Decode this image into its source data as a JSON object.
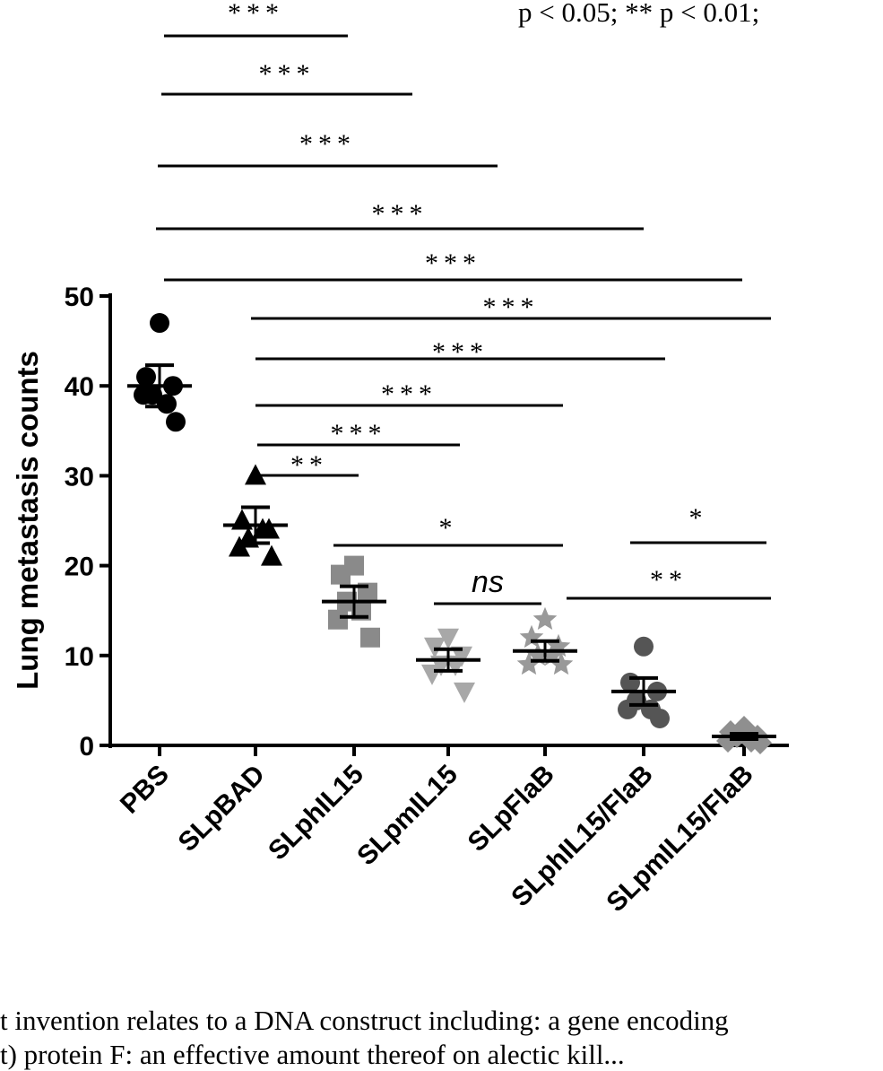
{
  "header_fragment": "p < 0.05;  ** p < 0.01;",
  "chart_data": {
    "type": "scatter",
    "title": "",
    "xlabel": "",
    "ylabel": "Lung metastasis counts",
    "ylim": [
      0,
      50
    ],
    "yticks": [
      0,
      10,
      20,
      30,
      40,
      50
    ],
    "grid": false,
    "categories": [
      "PBS",
      "SLpBAD",
      "SLphIL15",
      "SLpmIL15",
      "SLpFlaB",
      "SLphIL15/FlaB",
      "SLpmIL15/FlaB"
    ],
    "series": [
      {
        "category": "PBS",
        "marker": "circle",
        "color": "#000000",
        "mean": 40,
        "sem": 2.3,
        "points": [
          47,
          41,
          40,
          39,
          38,
          39,
          36
        ]
      },
      {
        "category": "SLpBAD",
        "marker": "triangle",
        "color": "#000000",
        "mean": 24.5,
        "sem": 2.0,
        "points": [
          30,
          25,
          24,
          23,
          24,
          22,
          21
        ]
      },
      {
        "category": "SLphIL15",
        "marker": "square",
        "color": "#8a8a8a",
        "mean": 16,
        "sem": 1.7,
        "points": [
          20,
          19,
          17,
          16,
          15,
          14,
          12
        ]
      },
      {
        "category": "SLpmIL15",
        "marker": "triangle-down",
        "color": "#a8a8a8",
        "mean": 9.5,
        "sem": 1.2,
        "points": [
          12,
          11,
          10,
          9,
          9,
          8,
          6
        ]
      },
      {
        "category": "SLpFlaB",
        "marker": "star",
        "color": "#999999",
        "mean": 10.5,
        "sem": 1.1,
        "points": [
          14,
          12,
          11,
          10,
          10,
          9,
          9
        ]
      },
      {
        "category": "SLphIL15/FlaB",
        "marker": "circle",
        "color": "#555555",
        "mean": 6,
        "sem": 1.5,
        "points": [
          11,
          7,
          6,
          5,
          4,
          4,
          3
        ]
      },
      {
        "category": "SLpmIL15/FlaB",
        "marker": "diamond",
        "color": "#8f8f8f",
        "mean": 1,
        "sem": 0.3,
        "points": [
          2,
          1.5,
          1,
          1,
          0.5,
          0.5,
          0.3
        ]
      }
    ],
    "comparisons": [
      {
        "from": 0,
        "to": 1,
        "label": "***"
      },
      {
        "from": 0,
        "to": 2,
        "label": "***"
      },
      {
        "from": 0,
        "to": 3,
        "label": "***"
      },
      {
        "from": 0,
        "to": 5,
        "label": "***"
      },
      {
        "from": 0,
        "to": 6,
        "label": "***"
      },
      {
        "from": 1,
        "to": 6,
        "label": "***"
      },
      {
        "from": 1,
        "to": 5,
        "label": "***"
      },
      {
        "from": 1,
        "to": 4,
        "label": "***"
      },
      {
        "from": 1,
        "to": 3,
        "label": "***"
      },
      {
        "from": 1,
        "to": 2,
        "label": "**"
      },
      {
        "from": 2,
        "to": 4,
        "label": "*"
      },
      {
        "from": 3,
        "to": 4,
        "label": "ns"
      },
      {
        "from": 5,
        "to": 6,
        "label": "*"
      },
      {
        "from": 4,
        "to": 6,
        "label": "**"
      }
    ]
  },
  "body_text": [
    "t invention relates to a DNA construct including: a gene encoding",
    "t) protein F: an effective amount thereof on alectic kill..."
  ]
}
